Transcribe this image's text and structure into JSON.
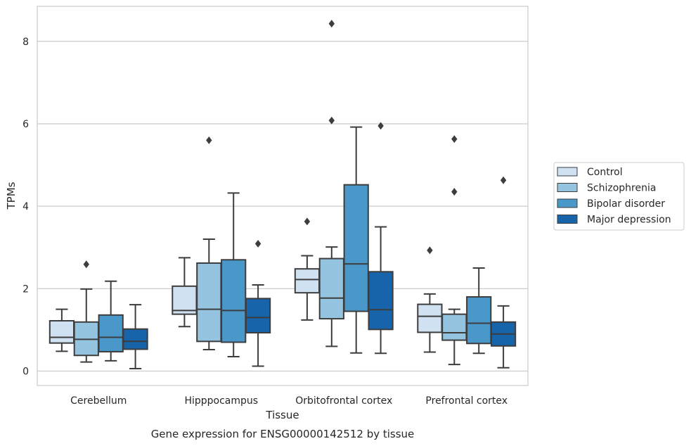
{
  "chart_data": {
    "type": "box",
    "caption": "Gene expression for ENSG00000142512 by tissue",
    "xlabel": "Tissue",
    "ylabel": "TPMs",
    "ylim": [
      -0.35,
      8.85
    ],
    "yticks": [
      0,
      2,
      4,
      6,
      8
    ],
    "grid": "horizontal",
    "legend_placement": "right",
    "categories": [
      "Cerebellum",
      "Hipppocampus",
      "Orbitofrontal cortex",
      "Prefrontal cortex"
    ],
    "series": [
      {
        "name": "Control",
        "color": "#d0e1f2",
        "boxes": [
          {
            "whislo": 0.48,
            "q1": 0.68,
            "med": 0.82,
            "q3": 1.22,
            "whishi": 1.5,
            "fliers": []
          },
          {
            "whislo": 1.08,
            "q1": 1.38,
            "med": 1.47,
            "q3": 2.06,
            "whishi": 2.75,
            "fliers": []
          },
          {
            "whislo": 1.24,
            "q1": 1.9,
            "med": 2.22,
            "q3": 2.48,
            "whishi": 2.8,
            "fliers": [
              3.63
            ]
          },
          {
            "whislo": 0.46,
            "q1": 0.94,
            "med": 1.33,
            "q3": 1.62,
            "whishi": 1.87,
            "fliers": [
              2.93
            ]
          }
        ]
      },
      {
        "name": "Schizophrenia",
        "color": "#94c4df",
        "boxes": [
          {
            "whislo": 0.22,
            "q1": 0.38,
            "med": 0.77,
            "q3": 1.19,
            "whishi": 1.99,
            "fliers": [
              2.59
            ]
          },
          {
            "whislo": 0.52,
            "q1": 0.72,
            "med": 1.5,
            "q3": 2.62,
            "whishi": 3.2,
            "fliers": [
              5.6
            ]
          },
          {
            "whislo": 0.6,
            "q1": 1.27,
            "med": 1.77,
            "q3": 2.73,
            "whishi": 3.01,
            "fliers": [
              6.08,
              8.43
            ]
          },
          {
            "whislo": 0.16,
            "q1": 0.75,
            "med": 0.93,
            "q3": 1.38,
            "whishi": 1.5,
            "fliers": [
              4.35,
              5.63
            ]
          }
        ]
      },
      {
        "name": "Bipolar disorder",
        "color": "#4a98c9",
        "boxes": [
          {
            "whislo": 0.25,
            "q1": 0.47,
            "med": 0.82,
            "q3": 1.36,
            "whishi": 2.18,
            "fliers": []
          },
          {
            "whislo": 0.35,
            "q1": 0.7,
            "med": 1.47,
            "q3": 2.7,
            "whishi": 4.32,
            "fliers": []
          },
          {
            "whislo": 0.44,
            "q1": 1.45,
            "med": 2.6,
            "q3": 4.52,
            "whishi": 5.92,
            "fliers": []
          },
          {
            "whislo": 0.43,
            "q1": 0.67,
            "med": 1.16,
            "q3": 1.8,
            "whishi": 2.5,
            "fliers": []
          }
        ]
      },
      {
        "name": "Major depression",
        "color": "#1764ab",
        "boxes": [
          {
            "whislo": 0.06,
            "q1": 0.53,
            "med": 0.72,
            "q3": 1.02,
            "whishi": 1.61,
            "fliers": []
          },
          {
            "whislo": 0.12,
            "q1": 0.93,
            "med": 1.3,
            "q3": 1.76,
            "whishi": 2.09,
            "fliers": [
              3.09
            ]
          },
          {
            "whislo": 0.43,
            "q1": 1.01,
            "med": 1.49,
            "q3": 2.41,
            "whishi": 3.5,
            "fliers": [
              5.95
            ]
          },
          {
            "whislo": 0.08,
            "q1": 0.61,
            "med": 0.9,
            "q3": 1.19,
            "whishi": 1.58,
            "fliers": [
              4.63
            ]
          }
        ]
      }
    ]
  }
}
